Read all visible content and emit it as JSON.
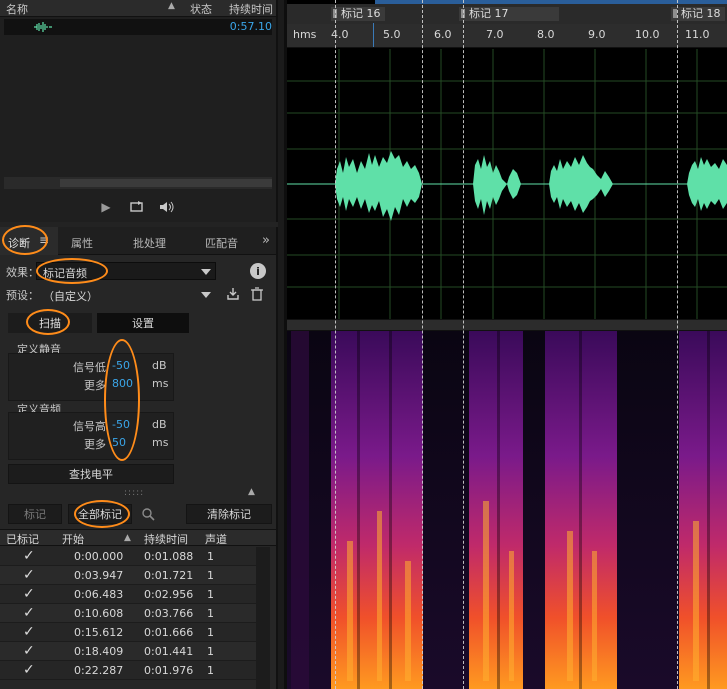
{
  "files_panel": {
    "col_name": "名称",
    "col_status": "状态",
    "col_duration": "持续时间",
    "file_duration": "0:57.10"
  },
  "diagnostics": {
    "tabs": [
      "诊断",
      "属性",
      "批处理",
      "匹配音"
    ],
    "effect_label": "效果：",
    "effect_value": "标记音频",
    "preset_label": "预设：",
    "preset_value": "（自定义）",
    "scan_label": "扫描",
    "settings_label": "设置",
    "silence_group": "定义静音",
    "audio_group": "定义音频",
    "silence_signal_label": "信号低",
    "silence_signal_value": "-50",
    "silence_more_label": "更多",
    "silence_more_value": "800",
    "audio_signal_label": "信号高",
    "audio_signal_value": "-50",
    "audio_more_label": "更多",
    "audio_more_value": "50",
    "unit_db": "dB",
    "unit_ms": "ms",
    "find_levels_label": "查找电平",
    "mark_label": "标记",
    "mark_all_label": "全部标记",
    "clear_marks_label": "清除标记",
    "table_headers": [
      "已标记",
      "开始",
      "持续时间",
      "声道"
    ],
    "rows": [
      {
        "start": "0:00.000",
        "duration": "0:01.088",
        "channel": "1"
      },
      {
        "start": "0:03.947",
        "duration": "0:01.721",
        "channel": "1"
      },
      {
        "start": "0:06.483",
        "duration": "0:02.956",
        "channel": "1"
      },
      {
        "start": "0:10.608",
        "duration": "0:03.766",
        "channel": "1"
      },
      {
        "start": "0:15.612",
        "duration": "0:01.666",
        "channel": "1"
      },
      {
        "start": "0:18.409",
        "duration": "0:01.441",
        "channel": "1"
      },
      {
        "start": "0:22.287",
        "duration": "0:01.976",
        "channel": "1"
      }
    ]
  },
  "editor": {
    "markers": [
      "标记 16",
      "标记 17",
      "标记 18"
    ],
    "ruler_unit": "hms",
    "ruler_ticks": [
      "4.0",
      "5.0",
      "6.0",
      "7.0",
      "8.0",
      "9.0",
      "10.0",
      "11.0"
    ]
  },
  "colors": {
    "accent_blue": "#3aa5e8",
    "waveform_green": "#5fe0a8",
    "highlight_orange": "#ff8c1a"
  },
  "icons": {
    "play": "play-icon",
    "loop": "loop-icon",
    "volume": "volume-icon",
    "info": "info-icon",
    "save_preset": "save-preset-icon",
    "delete": "trash-icon",
    "search": "search-icon"
  }
}
